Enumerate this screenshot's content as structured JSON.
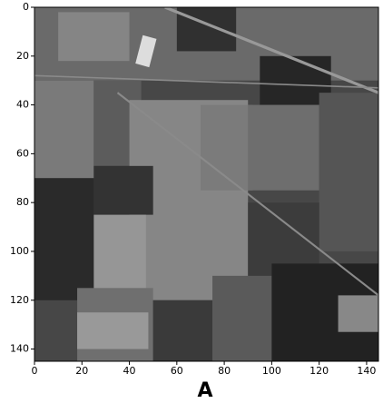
{
  "chart_data": {
    "type": "image",
    "xlabel": "A",
    "xlim": [
      0,
      145
    ],
    "ylim": [
      145,
      0
    ],
    "xticks": [
      0,
      20,
      40,
      60,
      80,
      100,
      120,
      140
    ],
    "yticks": [
      0,
      20,
      40,
      60,
      80,
      100,
      120,
      140
    ]
  }
}
